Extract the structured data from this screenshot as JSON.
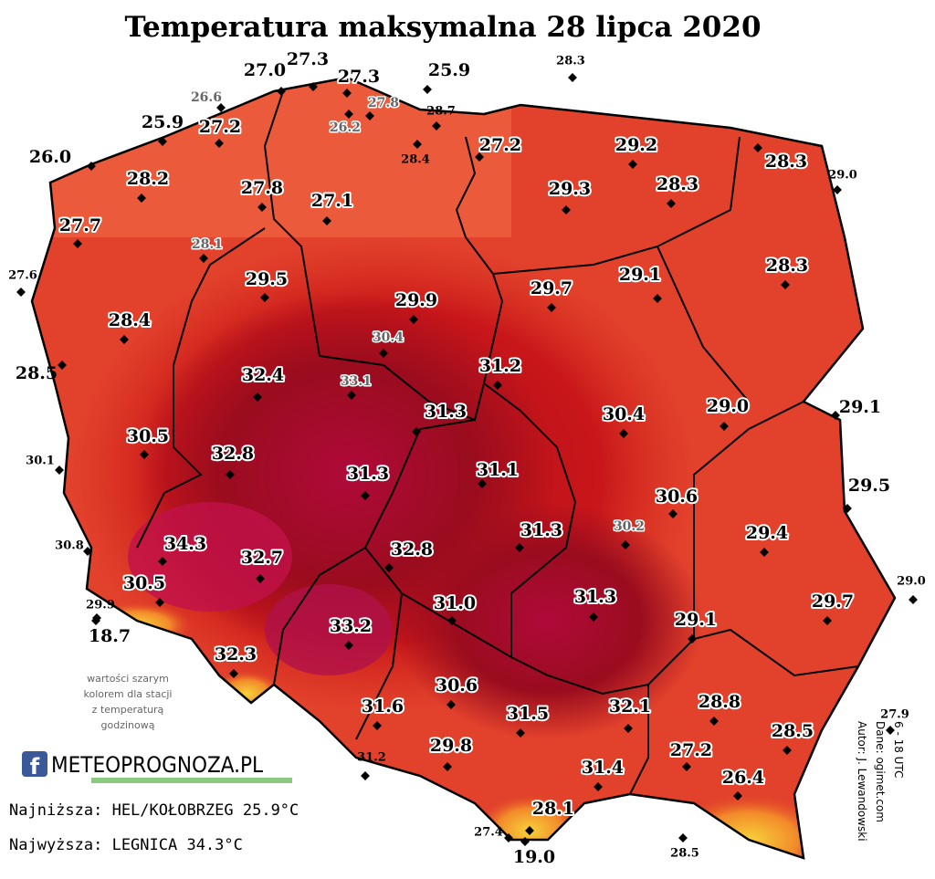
{
  "title": "Temperatura maksymalna 28 lipca 2020",
  "stations": [
    "27.0",
    "27.3",
    "27.3",
    "25.9",
    "28.3",
    "26.6",
    "27.8",
    "26.2",
    "28.7",
    "25.9",
    "27.2",
    "28.4",
    "27.2",
    "29.2",
    "28.3",
    "29.0",
    "26.0",
    "28.2",
    "27.8",
    "29.3",
    "28.3",
    "27.1",
    "27.7",
    "28.1",
    "27.6",
    "28.3",
    "29.5",
    "29.7",
    "29.1",
    "29.9",
    "28.4",
    "30.4",
    "28.5",
    "32.4",
    "33.1",
    "31.2",
    "30.4",
    "29.0",
    "29.1",
    "31.3",
    "30.5",
    "30.1",
    "32.8",
    "31.3",
    "31.1",
    "29.5",
    "30.6",
    "30.2",
    "31.3",
    "29.4",
    "30.8",
    "34.3",
    "32.8",
    "32.7",
    "29.0",
    "30.5",
    "31.3",
    "29.7",
    "31.0",
    "29.9",
    "18.7",
    "33.2",
    "29.1",
    "32.3",
    "30.6",
    "28.8",
    "31.6",
    "31.5",
    "32.1",
    "27.9",
    "28.5",
    "27.2",
    "29.8",
    "31.2",
    "31.4",
    "26.4",
    "28.1",
    "27.4",
    "19.0",
    "28.5"
  ],
  "note": [
    "wartości szarym",
    "kolorem dla stacji",
    "z temperaturą",
    "godzinową"
  ],
  "logo": "METEOPROGNOZA.PL",
  "lowest": "Najniższa: HEL/KOŁOBRZEG 25.9°C",
  "highest": "Najwyższa: LEGNICA 34.3°C",
  "credits": [
    "Autor: J. Lewandowski",
    "Dane: ogimet.com",
    "6 - 18 UTC"
  ]
}
